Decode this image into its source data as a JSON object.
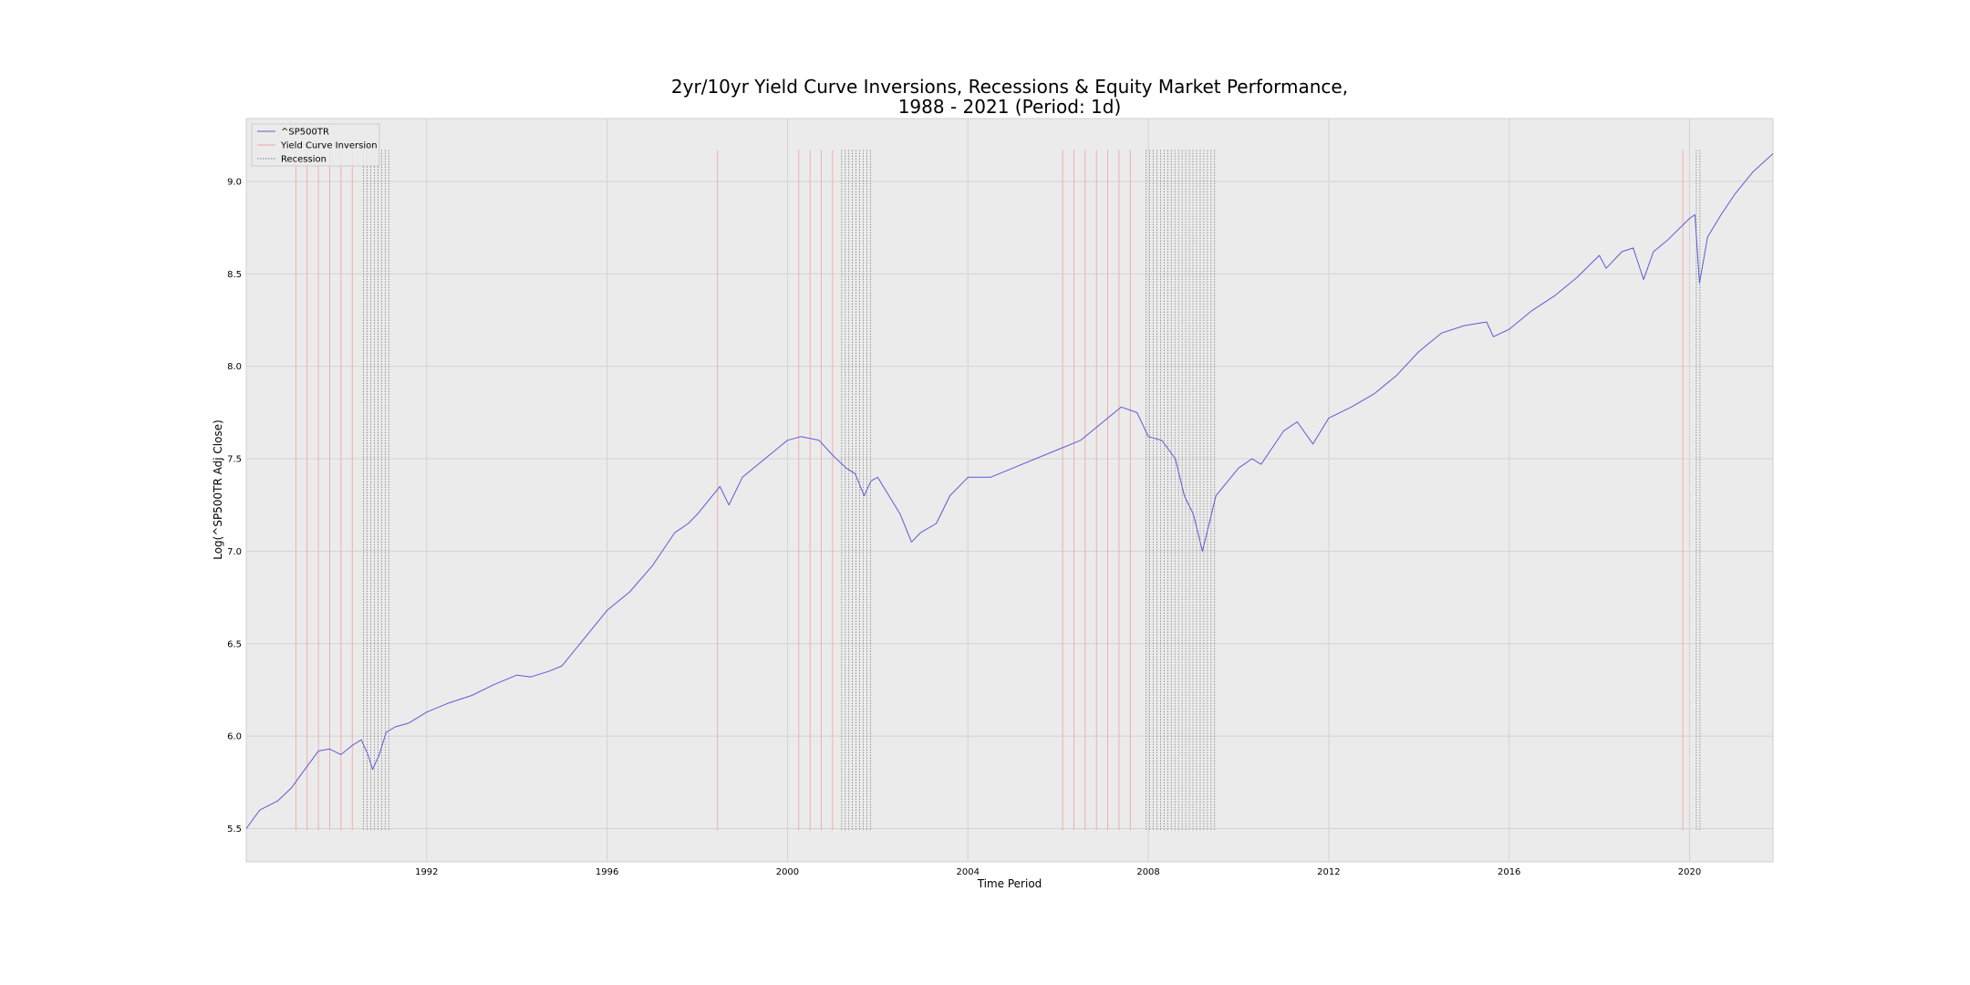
{
  "chart_data": {
    "type": "line",
    "title_lines": [
      "2yr/10yr Yield Curve Inversions, Recessions & Equity Market Performance,",
      "1988 - 2021 (Period: 1d)"
    ],
    "xlabel": "Time Period",
    "ylabel": "Log(^SP500TR Adj Close)",
    "xlim": [
      1988.0,
      2021.85
    ],
    "ylim": [
      5.32,
      9.34
    ],
    "x_ticks": [
      1992,
      1996,
      2000,
      2004,
      2008,
      2012,
      2016,
      2020
    ],
    "y_ticks": [
      5.5,
      6.0,
      6.5,
      7.0,
      7.5,
      8.0,
      8.5,
      9.0
    ],
    "y_tick_labels": [
      "5.5",
      "6.0",
      "6.5",
      "7.0",
      "7.5",
      "8.0",
      "8.5",
      "9.0"
    ],
    "grid": true,
    "legend_position": "upper-left",
    "legend": [
      {
        "label": "^SP500TR",
        "color": "#5b5bd6",
        "style": "solid"
      },
      {
        "label": "Yield Curve Inversion",
        "color": "#f0a0a0",
        "style": "solid"
      },
      {
        "label": "Recession",
        "color": "#808080",
        "style": "dotted"
      }
    ],
    "series": [
      {
        "name": "^SP500TR",
        "color": "#5b5bd6",
        "x": [
          1988.0,
          1988.3,
          1988.7,
          1989.0,
          1989.3,
          1989.6,
          1989.85,
          1990.1,
          1990.35,
          1990.55,
          1990.7,
          1990.8,
          1990.95,
          1991.1,
          1991.3,
          1991.6,
          1992.0,
          1992.5,
          1993.0,
          1993.5,
          1994.0,
          1994.3,
          1994.7,
          1995.0,
          1995.5,
          1996.0,
          1996.5,
          1997.0,
          1997.5,
          1997.8,
          1998.0,
          1998.5,
          1998.7,
          1998.8,
          1999.0,
          1999.5,
          2000.0,
          2000.3,
          2000.7,
          2001.0,
          2001.3,
          2001.5,
          2001.7,
          2001.85,
          2002.0,
          2002.5,
          2002.75,
          2002.95,
          2003.3,
          2003.6,
          2004.0,
          2004.5,
          2005.0,
          2005.5,
          2006.0,
          2006.5,
          2007.0,
          2007.4,
          2007.75,
          2008.0,
          2008.3,
          2008.6,
          2008.8,
          2009.0,
          2009.2,
          2009.5,
          2010.0,
          2010.3,
          2010.5,
          2011.0,
          2011.3,
          2011.65,
          2012.0,
          2012.5,
          2013.0,
          2013.5,
          2014.0,
          2014.5,
          2015.0,
          2015.5,
          2015.65,
          2016.0,
          2016.5,
          2017.0,
          2017.5,
          2018.0,
          2018.15,
          2018.5,
          2018.75,
          2018.98,
          2019.2,
          2019.5,
          2020.0,
          2020.12,
          2020.22,
          2020.4,
          2020.7,
          2021.0,
          2021.4,
          2021.85
        ],
        "values": [
          5.5,
          5.6,
          5.65,
          5.72,
          5.82,
          5.92,
          5.93,
          5.9,
          5.95,
          5.98,
          5.9,
          5.82,
          5.9,
          6.02,
          6.05,
          6.07,
          6.13,
          6.18,
          6.22,
          6.28,
          6.33,
          6.32,
          6.35,
          6.38,
          6.53,
          6.68,
          6.78,
          6.92,
          7.1,
          7.15,
          7.2,
          7.35,
          7.25,
          7.3,
          7.4,
          7.5,
          7.6,
          7.62,
          7.6,
          7.52,
          7.45,
          7.42,
          7.3,
          7.38,
          7.4,
          7.2,
          7.05,
          7.1,
          7.15,
          7.3,
          7.4,
          7.4,
          7.45,
          7.5,
          7.55,
          7.6,
          7.7,
          7.78,
          7.75,
          7.62,
          7.6,
          7.5,
          7.3,
          7.2,
          7.0,
          7.3,
          7.45,
          7.5,
          7.47,
          7.65,
          7.7,
          7.58,
          7.72,
          7.78,
          7.85,
          7.95,
          8.08,
          8.18,
          8.22,
          8.24,
          8.16,
          8.2,
          8.3,
          8.38,
          8.48,
          8.6,
          8.53,
          8.62,
          8.64,
          8.47,
          8.62,
          8.68,
          8.8,
          8.82,
          8.45,
          8.7,
          8.82,
          8.93,
          9.05,
          9.15
        ]
      }
    ],
    "yield_curve_inversions": [
      1989.1,
      1989.35,
      1989.6,
      1989.85,
      1990.1,
      1990.35,
      1998.45,
      2000.25,
      2000.5,
      2000.75,
      2001.0,
      2006.1,
      2006.35,
      2006.6,
      2006.85,
      2007.1,
      2007.35,
      2007.6,
      2019.85
    ],
    "recessions": [
      1990.6,
      1990.68,
      1990.76,
      1990.84,
      1990.92,
      1991.0,
      1991.08,
      1991.16,
      2001.2,
      2001.28,
      2001.36,
      2001.44,
      2001.52,
      2001.6,
      2001.68,
      2001.76,
      2001.84,
      2007.95,
      2008.03,
      2008.11,
      2008.19,
      2008.27,
      2008.35,
      2008.43,
      2008.51,
      2008.59,
      2008.67,
      2008.75,
      2008.83,
      2008.91,
      2008.99,
      2009.07,
      2009.15,
      2009.23,
      2009.31,
      2009.39,
      2009.47,
      2020.15,
      2020.23
    ]
  }
}
